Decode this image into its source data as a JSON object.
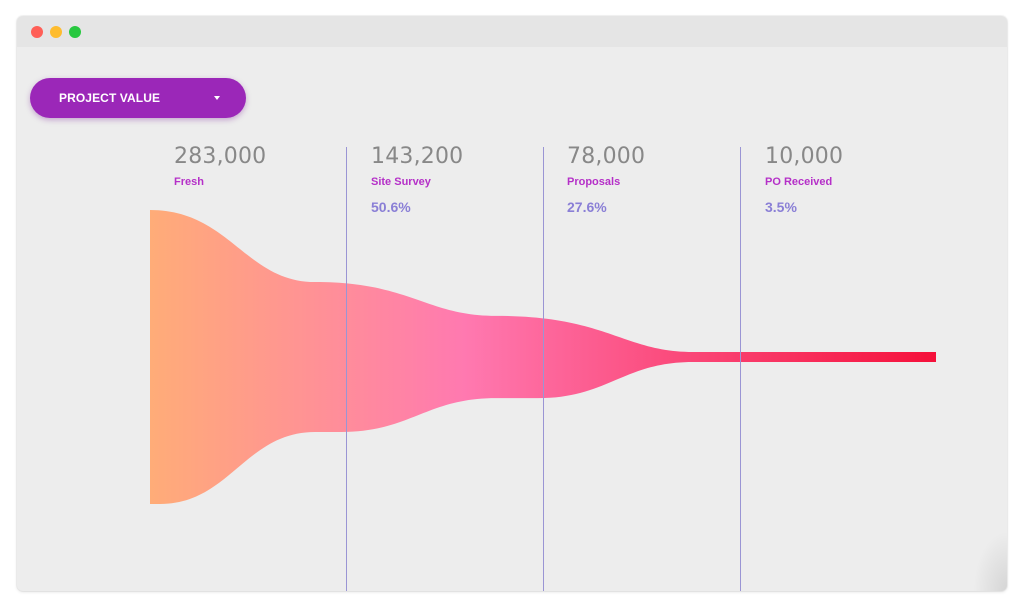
{
  "window": {
    "colors": {
      "close": "#ff5f57",
      "minimize": "#febc2e",
      "maximize": "#28c840"
    }
  },
  "dropdown": {
    "label": "PROJECT VALUE",
    "icon": "caret-down-icon",
    "color": "#9b27b8"
  },
  "colors": {
    "value_text": "#888888",
    "stage_name": "#b530c8",
    "percent": "#8a7fd6",
    "divider": "#9a95d4",
    "funnel_start": "#ffac78",
    "funnel_mid": "#ff79b0",
    "funnel_end": "#f5103a"
  },
  "chart_data": {
    "type": "area",
    "subtype": "funnel",
    "categories": [
      "Fresh",
      "Site Survey",
      "Proposals",
      "PO Received"
    ],
    "values": [
      283000,
      143200,
      78000,
      10000
    ],
    "value_labels": [
      "283,000",
      "143,200",
      "78,000",
      "10,000"
    ],
    "percent_labels": [
      "",
      "50.6%",
      "27.6%",
      "3.5%"
    ],
    "title": "",
    "xlabel": "",
    "ylabel": ""
  }
}
